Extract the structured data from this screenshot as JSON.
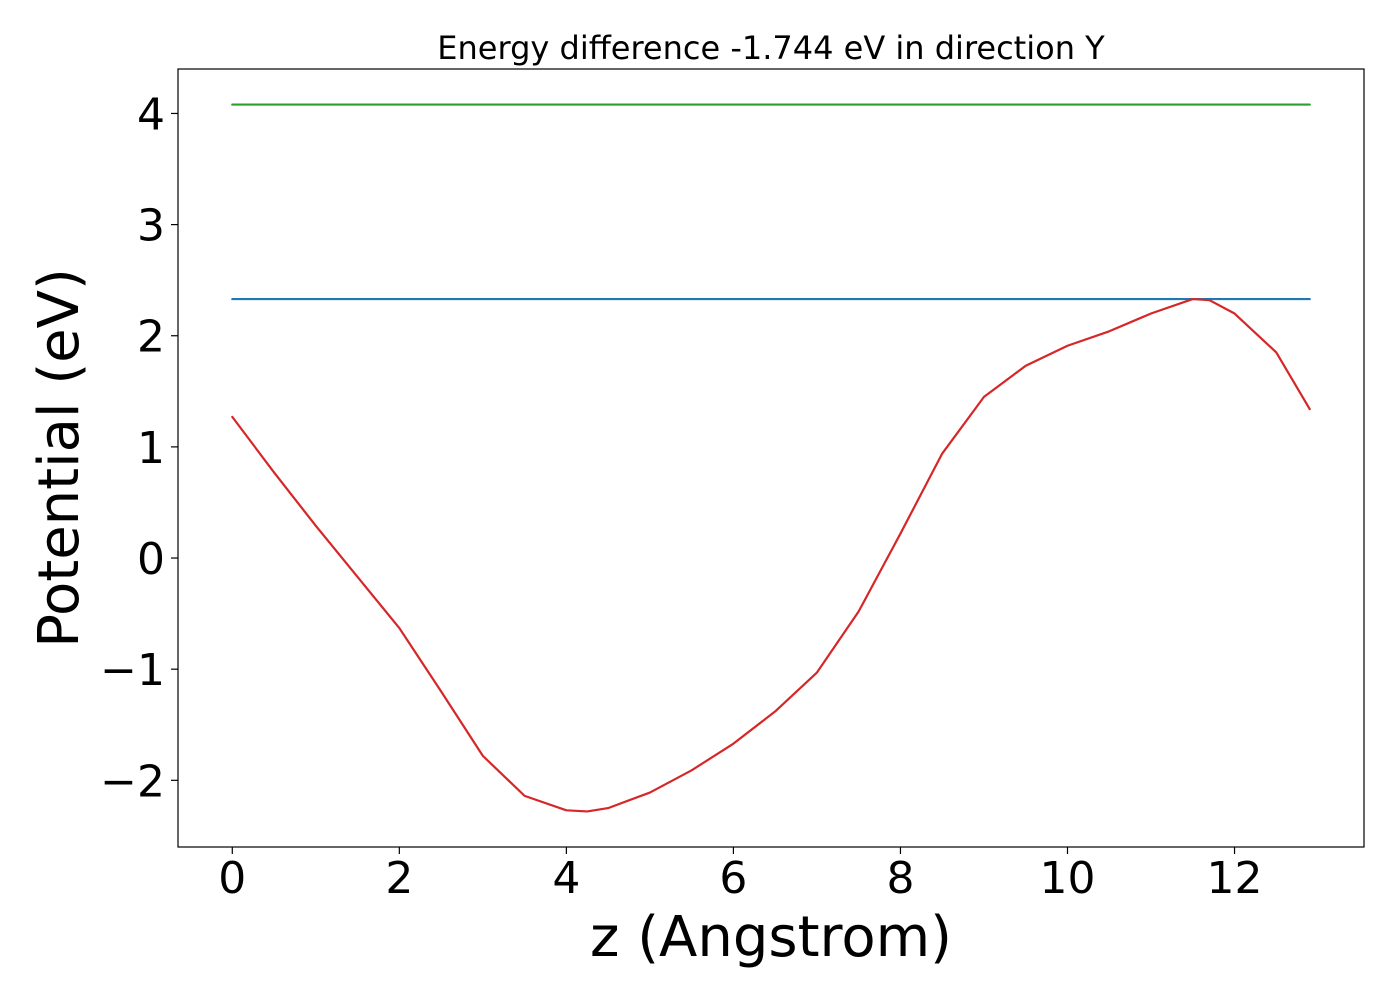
{
  "chart_data": {
    "type": "line",
    "title": "Energy difference -1.744 eV in direction Y",
    "xlabel": "z (Angstrom)",
    "ylabel": "Potential (eV)",
    "xlim": [
      -0.65,
      13.55
    ],
    "ylim": [
      -2.6,
      4.4
    ],
    "x_ticks": [
      0,
      2,
      4,
      6,
      8,
      10,
      12
    ],
    "x_tick_labels": [
      "0",
      "2",
      "4",
      "6",
      "8",
      "10",
      "12"
    ],
    "y_ticks": [
      -2,
      -1,
      0,
      1,
      2,
      3,
      4
    ],
    "y_tick_labels": [
      "−2",
      "−1",
      "0",
      "1",
      "2",
      "3",
      "4"
    ],
    "grid": false,
    "legend": "none",
    "series": [
      {
        "color": "#2ca02c",
        "x": [
          0,
          12.9
        ],
        "y": [
          4.08,
          4.08
        ]
      },
      {
        "color": "#1f77b4",
        "x": [
          0,
          12.9
        ],
        "y": [
          2.33,
          2.33
        ]
      },
      {
        "color": "#d62728",
        "x": [
          0,
          0.5,
          1.0,
          1.5,
          2.0,
          2.5,
          3.0,
          3.5,
          4.0,
          4.25,
          4.5,
          5.0,
          5.5,
          6.0,
          6.5,
          7.0,
          7.5,
          8.0,
          8.5,
          9.0,
          9.5,
          10.0,
          10.5,
          11.0,
          11.5,
          11.7,
          12.0,
          12.5,
          12.9
        ],
        "y": [
          1.27,
          0.77,
          0.29,
          -0.17,
          -0.63,
          -1.2,
          -1.78,
          -2.14,
          -2.27,
          -2.28,
          -2.25,
          -2.11,
          -1.91,
          -1.67,
          -1.38,
          -1.03,
          -0.48,
          0.22,
          0.94,
          1.45,
          1.73,
          1.91,
          2.04,
          2.2,
          2.33,
          2.32,
          2.2,
          1.85,
          1.34
        ]
      }
    ]
  }
}
